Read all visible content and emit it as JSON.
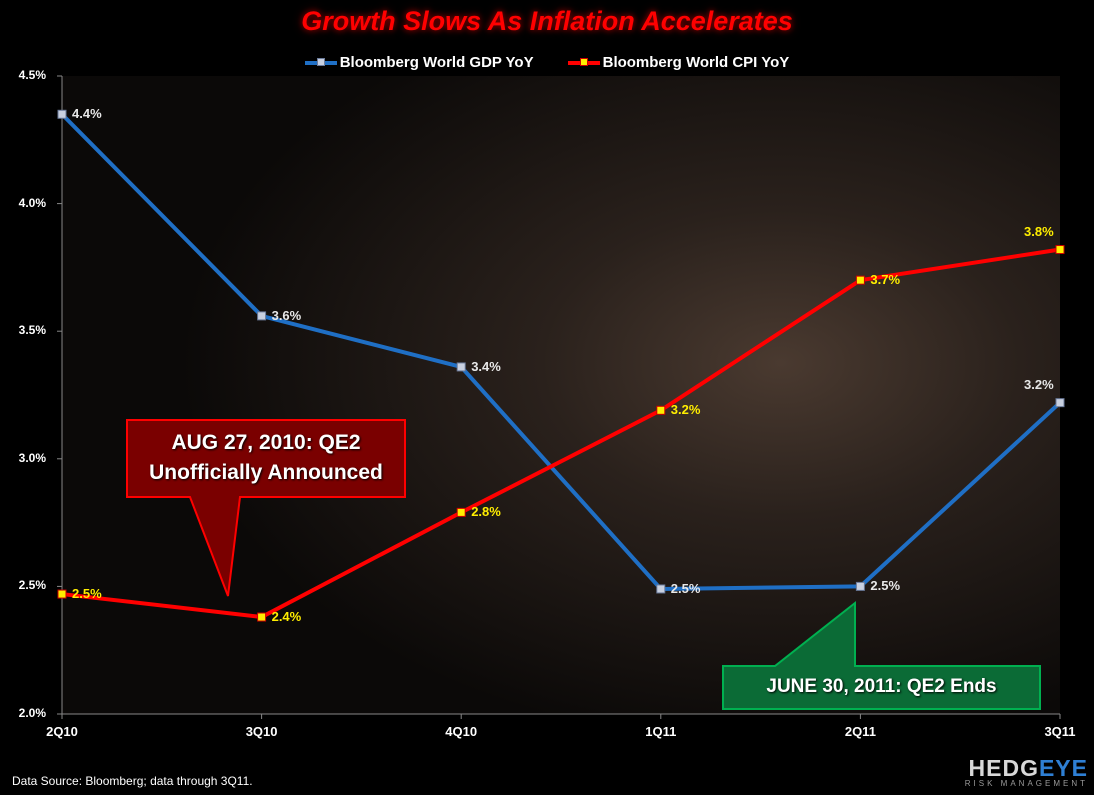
{
  "chart_data": {
    "type": "line",
    "title": "Growth Slows As Inflation Accelerates",
    "xlabel": "",
    "ylabel": "",
    "categories": [
      "2Q10",
      "3Q10",
      "4Q10",
      "1Q11",
      "2Q11",
      "3Q11"
    ],
    "series": [
      {
        "name": "Bloomberg World GDP YoY",
        "color": "#1f6fc5",
        "values": [
          4.35,
          3.56,
          3.36,
          2.49,
          2.5,
          3.22
        ],
        "labels": [
          "4.4%",
          "3.6%",
          "3.4%",
          "2.5%",
          "2.5%",
          "3.2%"
        ]
      },
      {
        "name": "Bloomberg World CPI YoY",
        "color": "#ff0000",
        "values": [
          2.47,
          2.38,
          2.79,
          3.19,
          3.7,
          3.82
        ],
        "labels": [
          "2.5%",
          "2.4%",
          "2.8%",
          "3.2%",
          "3.7%",
          "3.8%"
        ]
      }
    ],
    "ylim": [
      2.0,
      4.5
    ],
    "yticks": [
      "2.0%",
      "2.5%",
      "3.0%",
      "3.5%",
      "4.0%",
      "4.5%"
    ],
    "grid": false,
    "legend_position": "top",
    "annotations": [
      {
        "text_line1": "AUG 27, 2010: QE2",
        "text_line2": "Unofficially Announced",
        "color": "#8b0000"
      },
      {
        "text": "JUNE 30, 2011: QE2 Ends",
        "color": "#00803a"
      }
    ]
  },
  "footer": {
    "source": "Data Source:  Bloomberg;  data through  3Q11."
  },
  "logo": {
    "main_part1": "HEDG",
    "main_part2": "EYE",
    "sub": "RISK MANAGEMENT"
  }
}
